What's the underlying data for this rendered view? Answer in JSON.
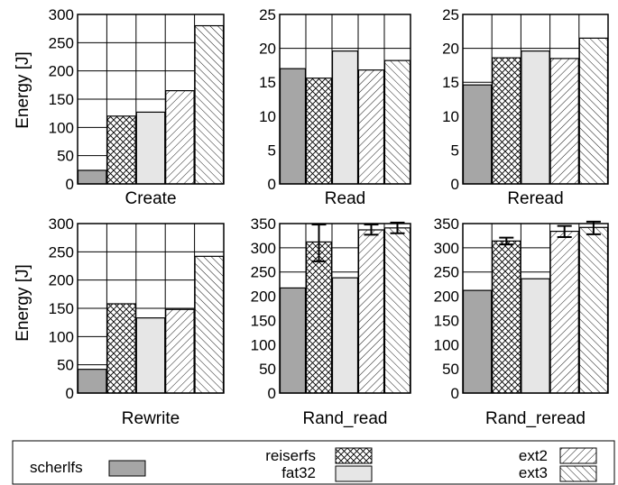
{
  "figure": {
    "ylabel": "Energy [J]",
    "legend": {
      "placement": "bottom",
      "entries": [
        {
          "name": "scherlfs",
          "pattern": "solid-dark-gray",
          "color": "#a6a6a6"
        },
        {
          "name": "reiserfs",
          "pattern": "crosshatch",
          "color": "#ffffff"
        },
        {
          "name": "fat32",
          "pattern": "solid-light-gray",
          "color": "#e6e6e6"
        },
        {
          "name": "ext2",
          "pattern": "backslash-hatch",
          "color": "#ffffff"
        },
        {
          "name": "ext3",
          "pattern": "forward-slash-hatch",
          "color": "#ffffff"
        }
      ]
    }
  },
  "chart_data": [
    {
      "type": "bar",
      "title": "Create",
      "xlabel": "Create",
      "ylabel": "Energy [J]",
      "categories": [
        "scherlfs",
        "reiserfs",
        "fat32",
        "ext2",
        "ext3"
      ],
      "values": [
        24,
        120,
        127,
        165,
        280
      ],
      "ylim": [
        0,
        300
      ],
      "yticks": [
        0,
        50,
        100,
        150,
        200,
        250,
        300
      ],
      "grid": true
    },
    {
      "type": "bar",
      "title": "Read",
      "xlabel": "Read",
      "ylabel": "",
      "categories": [
        "scherlfs",
        "reiserfs",
        "fat32",
        "ext2",
        "ext3"
      ],
      "values": [
        17,
        15.6,
        19.6,
        16.8,
        18.2
      ],
      "ylim": [
        0,
        25
      ],
      "yticks": [
        0,
        5,
        10,
        15,
        20,
        25
      ],
      "grid": true
    },
    {
      "type": "bar",
      "title": "Reread",
      "xlabel": "Reread",
      "ylabel": "",
      "categories": [
        "scherlfs",
        "reiserfs",
        "fat32",
        "ext2",
        "ext3"
      ],
      "values": [
        14.6,
        18.6,
        19.6,
        18.5,
        21.5
      ],
      "ylim": [
        0,
        25
      ],
      "yticks": [
        0,
        5,
        10,
        15,
        20,
        25
      ],
      "grid": true
    },
    {
      "type": "bar",
      "title": "Rewrite",
      "xlabel": "Rewrite",
      "ylabel": "Energy [J]",
      "categories": [
        "scherlfs",
        "reiserfs",
        "fat32",
        "ext2",
        "ext3"
      ],
      "values": [
        42,
        158,
        133,
        148,
        242
      ],
      "ylim": [
        0,
        300
      ],
      "yticks": [
        0,
        50,
        100,
        150,
        200,
        250,
        300
      ],
      "grid": true
    },
    {
      "type": "bar",
      "title": "Rand_read",
      "xlabel": "Rand_read",
      "ylabel": "",
      "categories": [
        "scherlfs",
        "reiserfs",
        "fat32",
        "ext2",
        "ext3"
      ],
      "values": [
        217,
        312,
        238,
        337,
        341
      ],
      "errors": [
        null,
        [
          272,
          348
        ],
        null,
        [
          327,
          348
        ],
        [
          330,
          352
        ]
      ],
      "ylim": [
        0,
        350
      ],
      "yticks": [
        0,
        50,
        100,
        150,
        200,
        250,
        300,
        350
      ],
      "grid": true
    },
    {
      "type": "bar",
      "title": "Rand_reread",
      "xlabel": "Rand_reread",
      "ylabel": "",
      "categories": [
        "scherlfs",
        "reiserfs",
        "fat32",
        "ext2",
        "ext3"
      ],
      "values": [
        212,
        314,
        236,
        334,
        342
      ],
      "errors": [
        null,
        [
          307,
          321
        ],
        null,
        [
          322,
          345
        ],
        [
          328,
          354
        ]
      ],
      "ylim": [
        0,
        350
      ],
      "yticks": [
        0,
        50,
        100,
        150,
        200,
        250,
        300,
        350
      ],
      "grid": true
    }
  ]
}
